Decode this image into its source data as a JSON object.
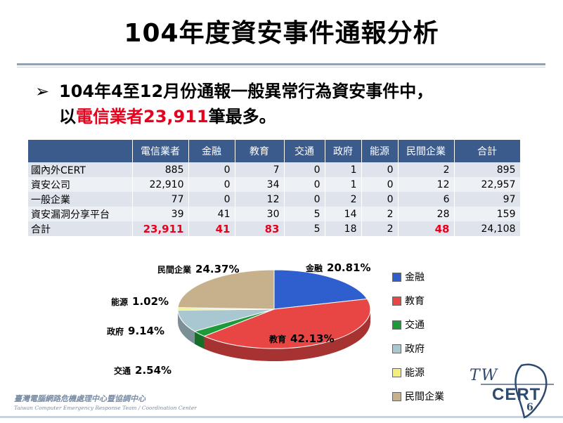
{
  "slide": {
    "title": "104年度資安事件通報分析",
    "bullet_arrow": "➢",
    "bullet_line1": "104年4至12月份通報一般異常行為資安事件中，",
    "bullet_line2_prefix": "以",
    "bullet_line2_highlight": "電信業者23,911",
    "bullet_line2_suffix": "筆最多。",
    "page_number": "6"
  },
  "table": {
    "columns": [
      "電信業者",
      "金融",
      "教育",
      "交通",
      "政府",
      "能源",
      "民間企業",
      "合計"
    ],
    "rows": [
      {
        "label": "國內外CERT",
        "values": [
          "885",
          "0",
          "7",
          "0",
          "1",
          "0",
          "2",
          "895"
        ]
      },
      {
        "label": "資安公司",
        "values": [
          "22,910",
          "0",
          "34",
          "0",
          "1",
          "0",
          "12",
          "22,957"
        ]
      },
      {
        "label": "一般企業",
        "values": [
          "77",
          "0",
          "12",
          "0",
          "2",
          "0",
          "6",
          "97"
        ]
      },
      {
        "label": "資安漏洞分享平台",
        "values": [
          "39",
          "41",
          "30",
          "5",
          "14",
          "2",
          "28",
          "159"
        ]
      },
      {
        "label": "合計",
        "values": [
          "23,911",
          "41",
          "83",
          "5",
          "18",
          "2",
          "48",
          "24,108"
        ]
      }
    ],
    "highlight_color": "#e8001c"
  },
  "chart_data": {
    "type": "pie",
    "style": "3d",
    "legend_position": "right",
    "categories": [
      "金融",
      "教育",
      "交通",
      "政府",
      "能源",
      "民間企業"
    ],
    "values": [
      20.81,
      42.13,
      2.54,
      9.14,
      1.02,
      24.37
    ],
    "value_labels": [
      "20.81%",
      "42.13%",
      "2.54%",
      "9.14%",
      "1.02%",
      "24.37%"
    ],
    "colors": [
      "#2f5fcf",
      "#e84545",
      "#1d9a3a",
      "#a9c7d1",
      "#f2f07a",
      "#c7b08c"
    ]
  },
  "footer": {
    "org_cn": "臺灣電腦網路危機處理中心暨協調中心",
    "org_en": "Taiwan Computer Emergency Response Team / Coordination Center",
    "logo_tw": "TW",
    "logo_cert": "CERT"
  }
}
